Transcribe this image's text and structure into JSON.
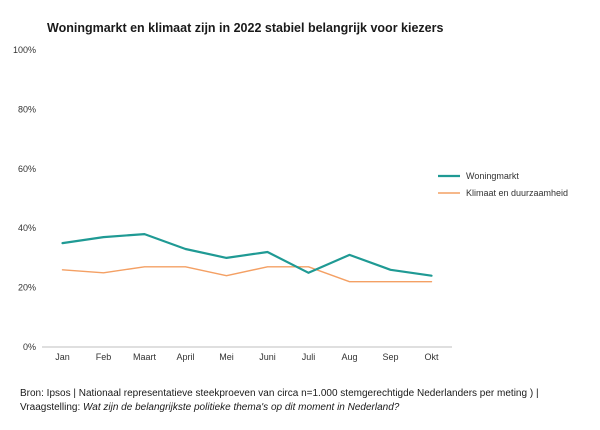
{
  "chart_data": {
    "type": "line",
    "title": "Woningmarkt en klimaat zijn in 2022 stabiel belangrijk voor kiezers",
    "categories": [
      "Jan",
      "Feb",
      "Maart",
      "April",
      "Mei",
      "Juni",
      "Juli",
      "Aug",
      "Sep",
      "Okt"
    ],
    "y_ticks": [
      "0%",
      "20%",
      "40%",
      "60%",
      "80%",
      "100%"
    ],
    "ylim": [
      0,
      100
    ],
    "grid": false,
    "legend_position": "right",
    "series": [
      {
        "name": "Woningmarkt",
        "color": "#1f9a94",
        "values": [
          35,
          37,
          38,
          33,
          30,
          32,
          25,
          31,
          26,
          24
        ]
      },
      {
        "name": "Klimaat en duurzaamheid",
        "color": "#f4a064",
        "values": [
          26,
          25,
          27,
          27,
          24,
          27,
          27,
          22,
          22,
          22
        ]
      }
    ]
  },
  "footnote": {
    "source": "Bron: Ipsos | Nationaal representatieve steekproeven van circa n=1.000 stemgerechtigde Nederlanders per meting ) |",
    "question_label": "Vraagstelling:",
    "question": "Wat zijn de belangrijkste politieke thema's op dit moment in Nederland?"
  }
}
